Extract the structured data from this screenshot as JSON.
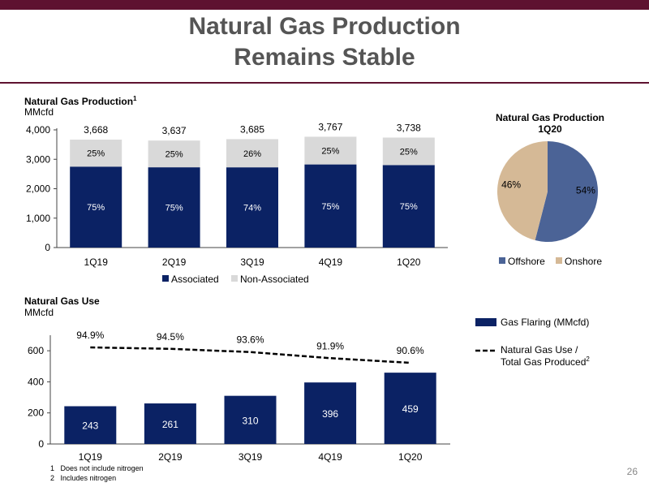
{
  "header": {
    "title_line1": "Natural Gas Production",
    "title_line2": "Remains Stable"
  },
  "colors": {
    "navy": "#0b2264",
    "light_gray": "#d9d9d9",
    "offshore": "#4b6396",
    "onshore": "#d5b996",
    "accent": "#5e1230"
  },
  "production_chart": {
    "title": "Natural Gas Production",
    "title_sup": "1",
    "unit": "MMcfd"
  },
  "pie_chart": {
    "title_line1": "Natural Gas Production",
    "title_line2": "1Q20"
  },
  "use_chart": {
    "title": "Natural Gas Use",
    "unit": "MMcfd",
    "legend_bar": "Gas Flaring (MMcfd)",
    "legend_line1": "Natural Gas Use /",
    "legend_line2": "Total Gas Produced",
    "legend_line_sup": "2"
  },
  "chart_data": [
    {
      "type": "bar",
      "title": "Natural Gas Production",
      "ylabel": "MMcfd",
      "categories": [
        "1Q19",
        "2Q19",
        "3Q19",
        "4Q19",
        "1Q20"
      ],
      "ylim": [
        0,
        4000
      ],
      "yticks": [
        "0",
        "1,000",
        "2,000",
        "3,000",
        "4,000"
      ],
      "totals": [
        "3,668",
        "3,637",
        "3,685",
        "3,767",
        "3,738"
      ],
      "series": [
        {
          "name": "Associated",
          "values": [
            2751,
            2728,
            2727,
            2825,
            2804
          ],
          "labels": [
            "75%",
            "75%",
            "74%",
            "75%",
            "75%"
          ]
        },
        {
          "name": "Non-Associated",
          "values": [
            917,
            909,
            958,
            942,
            934
          ],
          "labels": [
            "25%",
            "25%",
            "26%",
            "25%",
            "25%"
          ]
        }
      ],
      "stacked": true,
      "legend": "bottom"
    },
    {
      "type": "pie",
      "title": "Natural Gas Production 1Q20",
      "slices": [
        {
          "name": "Offshore",
          "value": 54,
          "label": "54%"
        },
        {
          "name": "Onshore",
          "value": 46,
          "label": "46%"
        }
      ],
      "legend": "bottom"
    },
    {
      "type": "bar",
      "title": "Natural Gas Use",
      "ylabel": "MMcfd",
      "categories": [
        "1Q19",
        "2Q19",
        "3Q19",
        "4Q19",
        "1Q20"
      ],
      "ylim": [
        0,
        700
      ],
      "yticks": [
        "0",
        "200",
        "400",
        "600"
      ],
      "series": [
        {
          "name": "Gas Flaring (MMcfd)",
          "type": "bar",
          "values": [
            243,
            261,
            310,
            396,
            459
          ],
          "labels": [
            "243",
            "261",
            "310",
            "396",
            "459"
          ]
        },
        {
          "name": "Natural Gas Use / Total Gas Produced",
          "type": "line",
          "values": [
            94.9,
            94.5,
            93.6,
            91.9,
            90.6
          ],
          "labels": [
            "94.9%",
            "94.5%",
            "93.6%",
            "91.9%",
            "90.6%"
          ]
        }
      ],
      "legend": "right"
    }
  ],
  "footnotes": [
    {
      "num": "1",
      "text": "Does not include nitrogen"
    },
    {
      "num": "2",
      "text": "Includes nitrogen"
    }
  ],
  "page_number": "26"
}
